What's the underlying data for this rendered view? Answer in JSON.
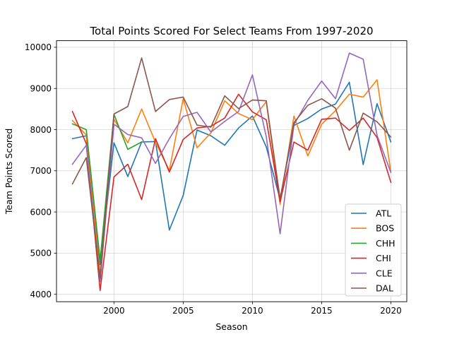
{
  "chart_data": {
    "type": "line",
    "title": "Total Points Scored For Select Teams From 1997-2020",
    "xlabel": "Season",
    "ylabel": "Team Points Scored",
    "xlim": [
      1995.85,
      2021.15
    ],
    "ylim": [
      3820,
      10160
    ],
    "xticks": [
      2000,
      2005,
      2010,
      2015,
      2020
    ],
    "yticks": [
      4000,
      5000,
      6000,
      7000,
      8000,
      9000,
      10000
    ],
    "grid": true,
    "legend_position": "lower-right",
    "x": [
      1997,
      1998,
      1999,
      2000,
      2001,
      2002,
      2003,
      2004,
      2005,
      2006,
      2007,
      2008,
      2009,
      2010,
      2011,
      2012,
      2013,
      2014,
      2015,
      2016,
      2017,
      2018,
      2019,
      2020
    ],
    "series": [
      {
        "name": "ATL",
        "color": "#1f77b4",
        "values": [
          7780,
          7850,
          4720,
          7680,
          6860,
          7700,
          7710,
          5560,
          6400,
          7990,
          7850,
          7620,
          8040,
          8330,
          7580,
          6300,
          8100,
          8270,
          8500,
          8620,
          9150,
          7150,
          8630,
          7700
        ]
      },
      {
        "name": "BOS",
        "color": "#ff7f0e",
        "values": [
          8220,
          7870,
          4460,
          8250,
          7680,
          8500,
          7690,
          7010,
          8750,
          7560,
          7920,
          8700,
          8390,
          8240,
          8680,
          6180,
          8330,
          7360,
          8130,
          8460,
          8860,
          8790,
          9210,
          6970
        ]
      },
      {
        "name": "CHH",
        "color": "#2ca02c",
        "values": [
          8140,
          8000,
          4820,
          8370,
          7520,
          7700,
          null,
          null,
          null,
          null,
          null,
          null,
          null,
          null,
          null,
          null,
          null,
          null,
          null,
          null,
          null,
          null,
          null,
          null
        ]
      },
      {
        "name": "CHI",
        "color": "#d62728",
        "values": [
          8440,
          7660,
          4090,
          6850,
          7160,
          6300,
          7780,
          6970,
          7760,
          8040,
          8080,
          8280,
          8860,
          8430,
          8240,
          6250,
          7700,
          7500,
          8250,
          8280,
          7980,
          8280,
          7810,
          6720
        ]
      },
      {
        "name": "CLE",
        "color": "#9467bd",
        "values": [
          7160,
          7620,
          4310,
          8130,
          7880,
          7800,
          7180,
          7780,
          8320,
          8420,
          7940,
          8200,
          8440,
          9330,
          7830,
          5470,
          8120,
          8710,
          9180,
          8750,
          9860,
          9710,
          7860,
          6960
        ]
      },
      {
        "name": "DAL",
        "color": "#8c564b",
        "values": [
          6680,
          7320,
          4390,
          8380,
          8560,
          9740,
          8440,
          8730,
          8790,
          8110,
          8060,
          8820,
          8510,
          8720,
          8700,
          6320,
          8170,
          8590,
          8750,
          8520,
          7500,
          8400,
          8190,
          7820
        ]
      }
    ]
  }
}
